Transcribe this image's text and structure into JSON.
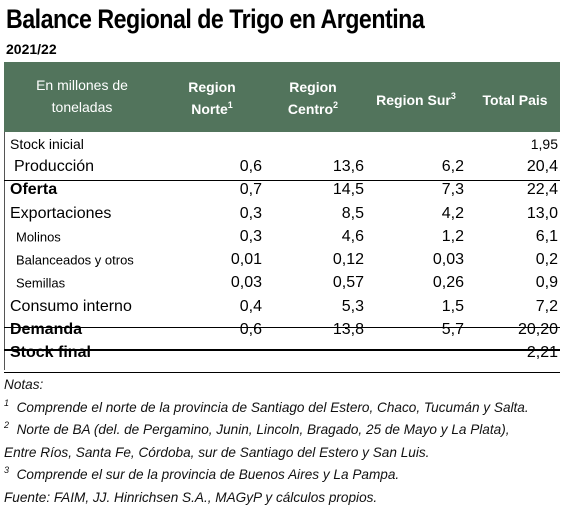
{
  "title": "Balance Regional de Trigo en Argentina",
  "subtitle": "2021/22",
  "header": {
    "units_line1": "En millones de",
    "units_line2": "toneladas",
    "norte_line1": "Region",
    "norte_line2": "Norte",
    "norte_sup": "1",
    "centro_line1": "Region",
    "centro_line2": "Centro",
    "centro_sup": "2",
    "sur": "Region Sur",
    "sur_sup": "3",
    "total": "Total Pais"
  },
  "rows": [
    {
      "label": "Stock inicial",
      "norte": "",
      "centro": "",
      "sur": "",
      "total": "1,95"
    },
    {
      "label": "Producción",
      "norte": "0,6",
      "centro": "13,6",
      "sur": "6,2",
      "total": "20,4"
    },
    {
      "label": "Oferta",
      "norte": "0,7",
      "centro": "14,5",
      "sur": "7,3",
      "total": "22,4"
    },
    {
      "label": "Exportaciones",
      "norte": "0,3",
      "centro": "8,5",
      "sur": "4,2",
      "total": "13,0"
    },
    {
      "label": "Molinos",
      "norte": "0,3",
      "centro": "4,6",
      "sur": "1,2",
      "total": "6,1"
    },
    {
      "label": "Balanceados y otros",
      "norte": "0,01",
      "centro": "0,12",
      "sur": "0,03",
      "total": "0,2"
    },
    {
      "label": "Semillas",
      "norte": "0,03",
      "centro": "0,57",
      "sur": "0,26",
      "total": "0,9"
    },
    {
      "label": "Consumo interno",
      "norte": "0,4",
      "centro": "5,3",
      "sur": "1,5",
      "total": "7,2"
    },
    {
      "label": "Demanda",
      "norte": "0,6",
      "centro": "13,8",
      "sur": "5,7",
      "total": "20,20"
    },
    {
      "label": "Stock final",
      "norte": "",
      "centro": "",
      "sur": "",
      "total": "2,21"
    }
  ],
  "notes": {
    "heading": "Notas:",
    "note1_num": "1",
    "note1": "Comprende el norte de la provincia de Santiago del Estero, Chaco, Tucumán y Salta.",
    "note2_num": "2",
    "note2_line1": "Norte de BA (del. de Pergamino, Junin, Lincoln, Bragado, 25 de Mayo y La Plata),",
    "note2_line2": "Entre Ríos, Santa Fe, Córdoba, sur de Santiago del Estero y San Luis.",
    "note3_num": "3",
    "note3": "Comprende el sur de la provincia de Buenos Aires y La Pampa.",
    "source": "Fuente: FAIM, JJ. Hinrichsen S.A., MAGyP y cálculos propios."
  },
  "colors": {
    "header_bg": "#52745c",
    "header_text": "#ffffff"
  }
}
